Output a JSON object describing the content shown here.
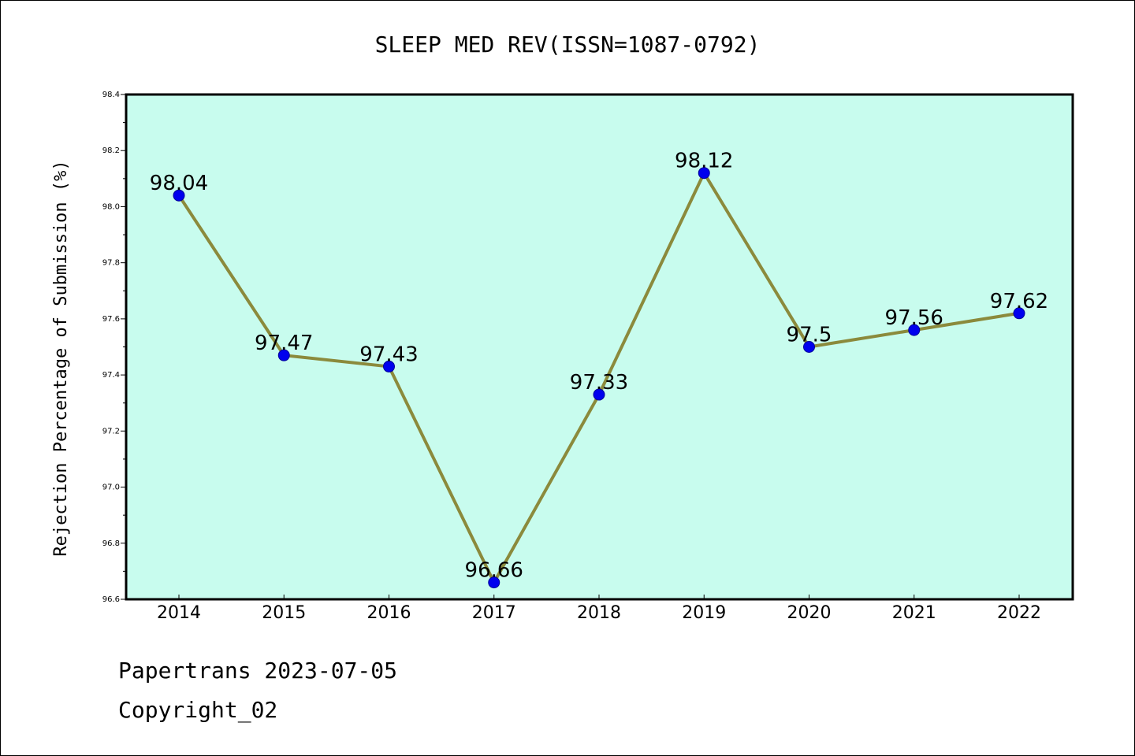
{
  "footer": {
    "line1": "Papertrans 2023-07-05",
    "line2": "Copyright_02"
  },
  "chart_data": {
    "type": "line",
    "title": "SLEEP MED REV(ISSN=1087-0792)",
    "xlabel": "",
    "ylabel": "Rejection Percentage of Submission (%)",
    "categories": [
      "2014",
      "2015",
      "2016",
      "2017",
      "2018",
      "2019",
      "2020",
      "2021",
      "2022"
    ],
    "series": [
      {
        "values": [
          98.04,
          97.47,
          97.43,
          96.66,
          97.33,
          98.12,
          97.5,
          97.56,
          97.62
        ],
        "labels": [
          "98.04",
          "97.47",
          "97.43",
          "96.66",
          "97.33",
          "98.12",
          "97.5",
          "97.56",
          "97.62"
        ]
      }
    ],
    "ylim": [
      96.6,
      98.4
    ],
    "yticks": [
      "96.6",
      "96.8",
      "97.0",
      "97.2",
      "97.4",
      "97.6",
      "97.8",
      "98.0",
      "98.2",
      "98.4"
    ],
    "grid": false,
    "legend": "none",
    "colors": {
      "plot_background": "#c8fcee",
      "line": "#8b8a3c",
      "marker": "#0000ee",
      "marker_edge": "#00009a",
      "axes": "#000000"
    }
  }
}
